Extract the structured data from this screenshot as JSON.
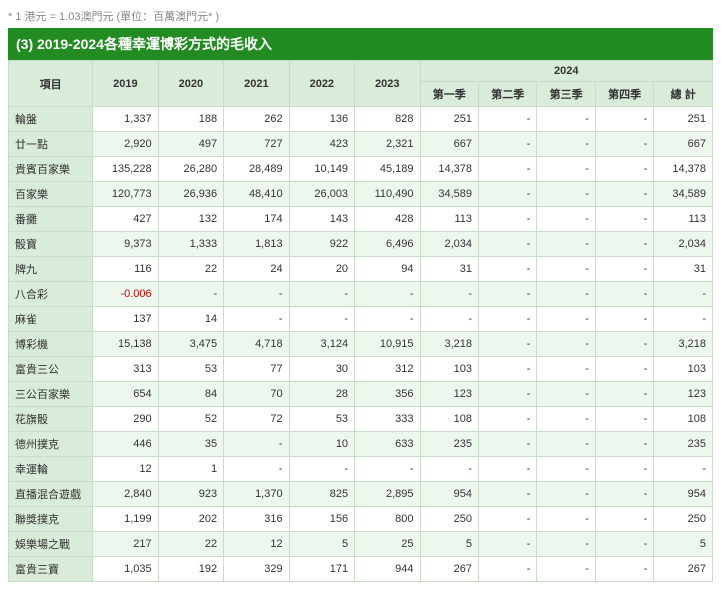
{
  "note": "* 1 港元 = 1.03澳門元 (單位：百萬澳門元* )",
  "title": "(3) 2019-2024各種幸運博彩方式的毛收入",
  "header": {
    "item": "項目",
    "y2019": "2019",
    "y2020": "2020",
    "y2021": "2021",
    "y2022": "2022",
    "y2023": "2023",
    "y2024": "2024",
    "q1": "第一季",
    "q2": "第二季",
    "q3": "第三季",
    "q4": "第四季",
    "total": "總 計"
  },
  "rows": [
    {
      "label": "輪盤",
      "y2019": "1,337",
      "y2020": "188",
      "y2021": "262",
      "y2022": "136",
      "y2023": "828",
      "q1": "251",
      "q2": "-",
      "q3": "-",
      "q4": "-",
      "total": "251"
    },
    {
      "label": "廿一點",
      "y2019": "2,920",
      "y2020": "497",
      "y2021": "727",
      "y2022": "423",
      "y2023": "2,321",
      "q1": "667",
      "q2": "-",
      "q3": "-",
      "q4": "-",
      "total": "667"
    },
    {
      "label": "貴賓百家樂",
      "y2019": "135,228",
      "y2020": "26,280",
      "y2021": "28,489",
      "y2022": "10,149",
      "y2023": "45,189",
      "q1": "14,378",
      "q2": "-",
      "q3": "-",
      "q4": "-",
      "total": "14,378"
    },
    {
      "label": "百家樂",
      "y2019": "120,773",
      "y2020": "26,936",
      "y2021": "48,410",
      "y2022": "26,003",
      "y2023": "110,490",
      "q1": "34,589",
      "q2": "-",
      "q3": "-",
      "q4": "-",
      "total": "34,589"
    },
    {
      "label": "番攤",
      "y2019": "427",
      "y2020": "132",
      "y2021": "174",
      "y2022": "143",
      "y2023": "428",
      "q1": "113",
      "q2": "-",
      "q3": "-",
      "q4": "-",
      "total": "113"
    },
    {
      "label": "骰寶",
      "y2019": "9,373",
      "y2020": "1,333",
      "y2021": "1,813",
      "y2022": "922",
      "y2023": "6,496",
      "q1": "2,034",
      "q2": "-",
      "q3": "-",
      "q4": "-",
      "total": "2,034"
    },
    {
      "label": "牌九",
      "y2019": "116",
      "y2020": "22",
      "y2021": "24",
      "y2022": "20",
      "y2023": "94",
      "q1": "31",
      "q2": "-",
      "q3": "-",
      "q4": "-",
      "total": "31"
    },
    {
      "label": "八合彩",
      "y2019": "-0.006",
      "y2019_neg": true,
      "y2020": "-",
      "y2021": "-",
      "y2022": "-",
      "y2023": "-",
      "q1": "-",
      "q2": "-",
      "q3": "-",
      "q4": "-",
      "total": "-"
    },
    {
      "label": "麻雀",
      "y2019": "137",
      "y2020": "14",
      "y2021": "-",
      "y2022": "-",
      "y2023": "-",
      "q1": "-",
      "q2": "-",
      "q3": "-",
      "q4": "-",
      "total": "-"
    },
    {
      "label": "博彩機",
      "y2019": "15,138",
      "y2020": "3,475",
      "y2021": "4,718",
      "y2022": "3,124",
      "y2023": "10,915",
      "q1": "3,218",
      "q2": "-",
      "q3": "-",
      "q4": "-",
      "total": "3,218"
    },
    {
      "label": "富貴三公",
      "y2019": "313",
      "y2020": "53",
      "y2021": "77",
      "y2022": "30",
      "y2023": "312",
      "q1": "103",
      "q2": "-",
      "q3": "-",
      "q4": "-",
      "total": "103"
    },
    {
      "label": "三公百家樂",
      "y2019": "654",
      "y2020": "84",
      "y2021": "70",
      "y2022": "28",
      "y2023": "356",
      "q1": "123",
      "q2": "-",
      "q3": "-",
      "q4": "-",
      "total": "123"
    },
    {
      "label": "花旗骰",
      "y2019": "290",
      "y2020": "52",
      "y2021": "72",
      "y2022": "53",
      "y2023": "333",
      "q1": "108",
      "q2": "-",
      "q3": "-",
      "q4": "-",
      "total": "108"
    },
    {
      "label": "德州撲克",
      "y2019": "446",
      "y2020": "35",
      "y2021": "-",
      "y2022": "10",
      "y2023": "633",
      "q1": "235",
      "q2": "-",
      "q3": "-",
      "q4": "-",
      "total": "235"
    },
    {
      "label": "幸運輪",
      "y2019": "12",
      "y2020": "1",
      "y2021": "-",
      "y2022": "-",
      "y2023": "-",
      "q1": "-",
      "q2": "-",
      "q3": "-",
      "q4": "-",
      "total": "-"
    },
    {
      "label": "直播混合遊戲",
      "y2019": "2,840",
      "y2020": "923",
      "y2021": "1,370",
      "y2022": "825",
      "y2023": "2,895",
      "q1": "954",
      "q2": "-",
      "q3": "-",
      "q4": "-",
      "total": "954"
    },
    {
      "label": "聯獎撲克",
      "y2019": "1,199",
      "y2020": "202",
      "y2021": "316",
      "y2022": "156",
      "y2023": "800",
      "q1": "250",
      "q2": "-",
      "q3": "-",
      "q4": "-",
      "total": "250"
    },
    {
      "label": "娛樂場之戰",
      "y2019": "217",
      "y2020": "22",
      "y2021": "12",
      "y2022": "5",
      "y2023": "25",
      "q1": "5",
      "q2": "-",
      "q3": "-",
      "q4": "-",
      "total": "5"
    },
    {
      "label": "富貴三寶",
      "y2019": "1,035",
      "y2020": "192",
      "y2021": "329",
      "y2022": "171",
      "y2023": "944",
      "q1": "267",
      "q2": "-",
      "q3": "-",
      "q4": "-",
      "total": "267"
    }
  ]
}
